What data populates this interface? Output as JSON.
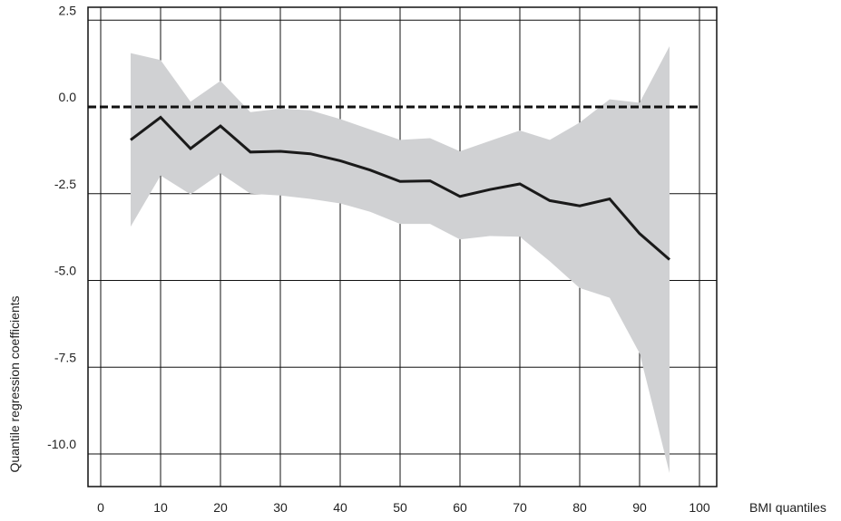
{
  "chart_data": {
    "type": "line",
    "title": "",
    "xlabel": "BMI quantiles",
    "ylabel": "Quantile regression coefficients",
    "xlim": [
      0,
      100
    ],
    "ylim": [
      -11,
      2.5
    ],
    "x_ticks": [
      0,
      10,
      20,
      30,
      40,
      50,
      60,
      70,
      80,
      90,
      100
    ],
    "y_ticks": [
      2.5,
      0.0,
      -2.5,
      -5.0,
      -7.5,
      -10.0
    ],
    "y_tick_labels": [
      "2.5",
      "0.0",
      "-2.5",
      "-5.0",
      "-7.5",
      "-10.0"
    ],
    "x_tick_labels": [
      "0",
      "10",
      "20",
      "30",
      "40",
      "50",
      "60",
      "70",
      "80",
      "90",
      "100"
    ],
    "grid": true,
    "reference_line": {
      "y": 0,
      "style": "dashed"
    },
    "series": [
      {
        "x": [
          5,
          10,
          15,
          20,
          25,
          30,
          35,
          40,
          45,
          50,
          55,
          60,
          65,
          70,
          75,
          80,
          85,
          90,
          95
        ],
        "y": [
          -0.95,
          -0.3,
          -1.2,
          -0.55,
          -1.3,
          -1.28,
          -1.35,
          -1.55,
          -1.82,
          -2.15,
          -2.13,
          -2.58,
          -2.38,
          -2.22,
          -2.7,
          -2.85,
          -2.65,
          -3.65,
          -4.4
        ],
        "lower": [
          -3.45,
          -1.98,
          -2.52,
          -1.92,
          -2.5,
          -2.55,
          -2.65,
          -2.78,
          -3.02,
          -3.37,
          -3.37,
          -3.82,
          -3.72,
          -3.74,
          -4.45,
          -5.22,
          -5.5,
          -7.1,
          -10.55
        ],
        "upper": [
          1.55,
          1.35,
          0.15,
          0.75,
          -0.15,
          -0.05,
          -0.1,
          -0.35,
          -0.65,
          -0.95,
          -0.9,
          -1.28,
          -0.98,
          -0.68,
          -0.95,
          -0.45,
          0.22,
          0.12,
          1.75
        ],
        "color": "#1a1a1a",
        "band_color": "#d0d1d3"
      }
    ]
  }
}
